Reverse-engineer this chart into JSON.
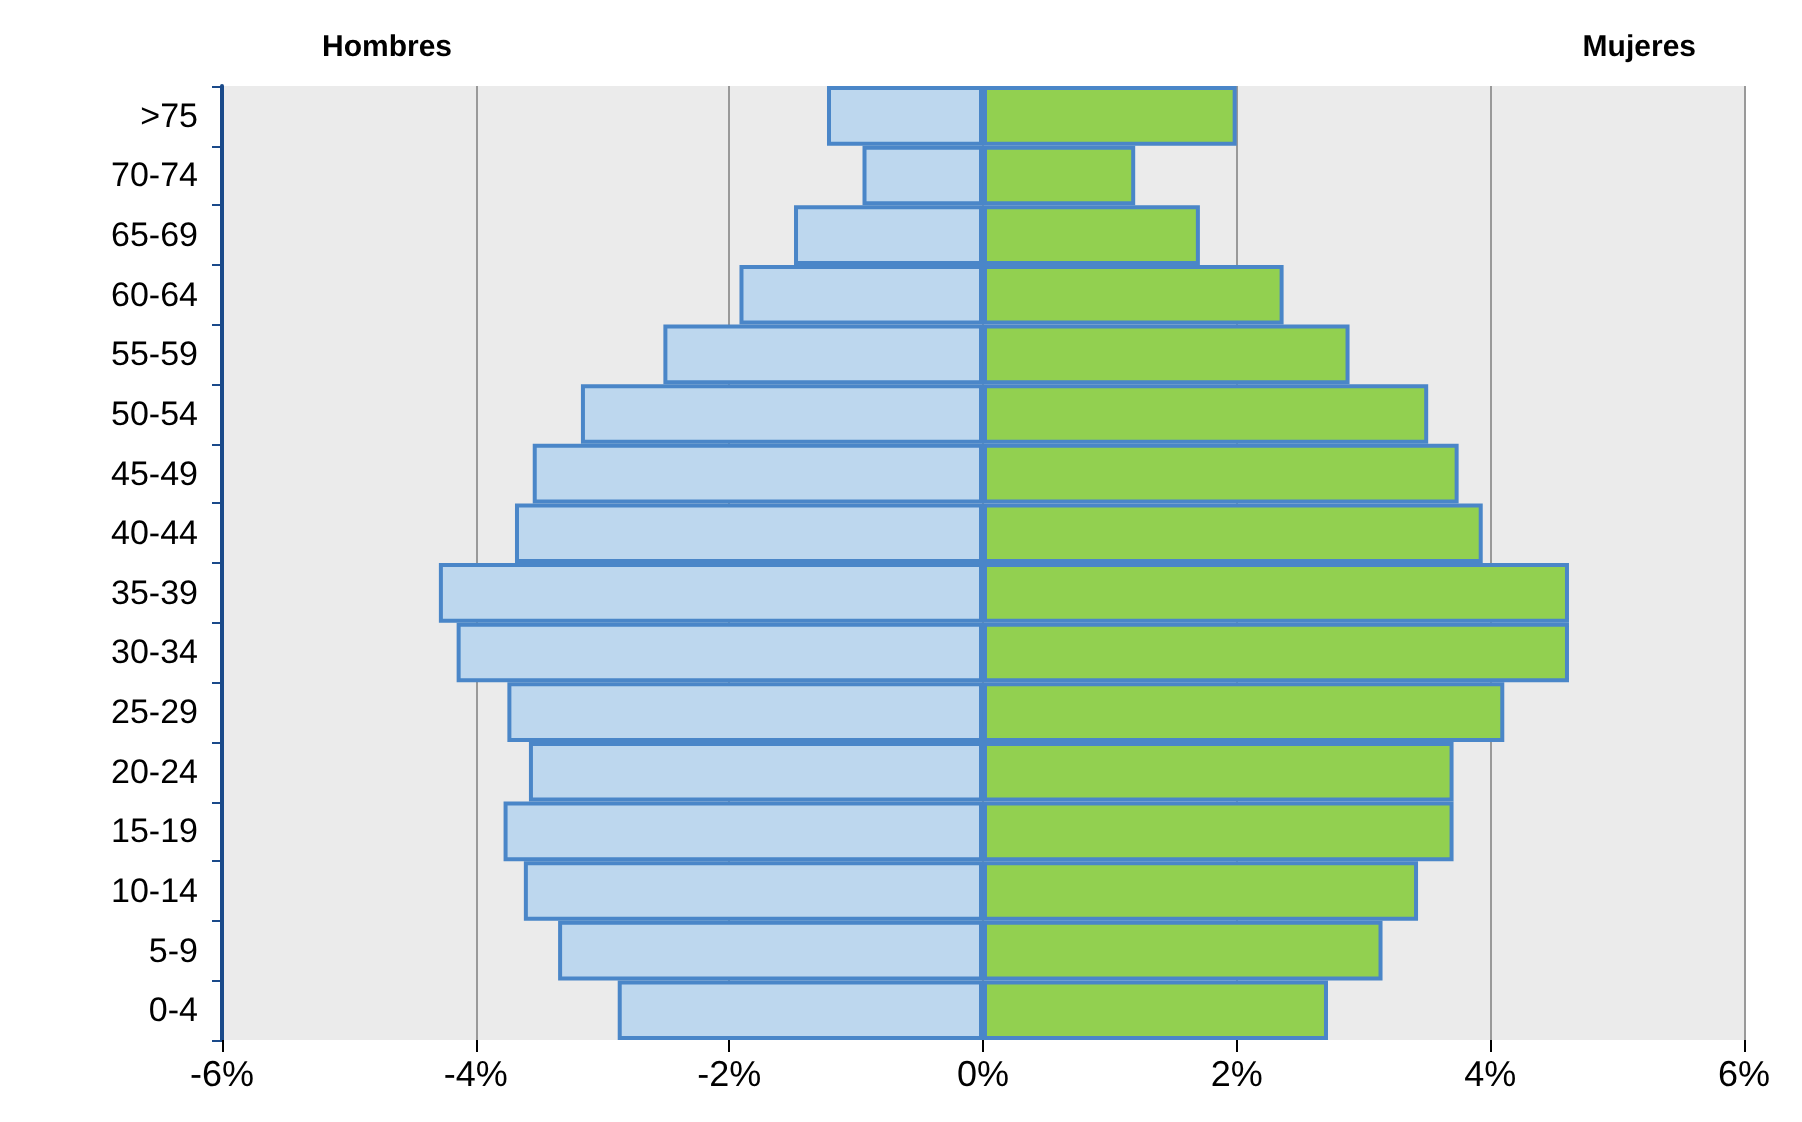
{
  "chart_data": {
    "type": "bar",
    "orientation": "horizontal",
    "categories": [
      ">75",
      "70-74",
      "65-69",
      "60-64",
      "55-59",
      "50-54",
      "45-49",
      "40-44",
      "35-39",
      "30-34",
      "25-29",
      "20-24",
      "15-19",
      "10-14",
      "5-9",
      "0-4"
    ],
    "series": [
      {
        "color": "#bdd7ee",
        "values": [
          -1.23,
          -0.95,
          -1.49,
          -1.92,
          -2.52,
          -3.17,
          -3.55,
          -3.69,
          -4.29,
          -4.15,
          -3.75,
          -3.58,
          -3.78,
          -3.62,
          -3.35,
          -2.88
        ]
      },
      {
        "color": "#92d050",
        "values": [
          2.0,
          1.2,
          1.71,
          2.37,
          2.89,
          3.51,
          3.75,
          3.94,
          4.62,
          4.62,
          4.11,
          3.71,
          3.71,
          3.43,
          3.15,
          2.72
        ]
      }
    ],
    "xlim": [
      -6,
      6
    ],
    "xticks": [
      {
        "value": -6,
        "label": "-6%"
      },
      {
        "value": -4,
        "label": "-4%"
      },
      {
        "value": -2,
        "label": "-2%"
      },
      {
        "value": 0,
        "label": "0%"
      },
      {
        "value": 2,
        "label": "2%"
      },
      {
        "value": 4,
        "label": "4%"
      },
      {
        "value": 6,
        "label": "6%"
      }
    ],
    "annotations": [
      "Hombres",
      "Mujeres"
    ],
    "stacked": true,
    "grid": "x"
  }
}
